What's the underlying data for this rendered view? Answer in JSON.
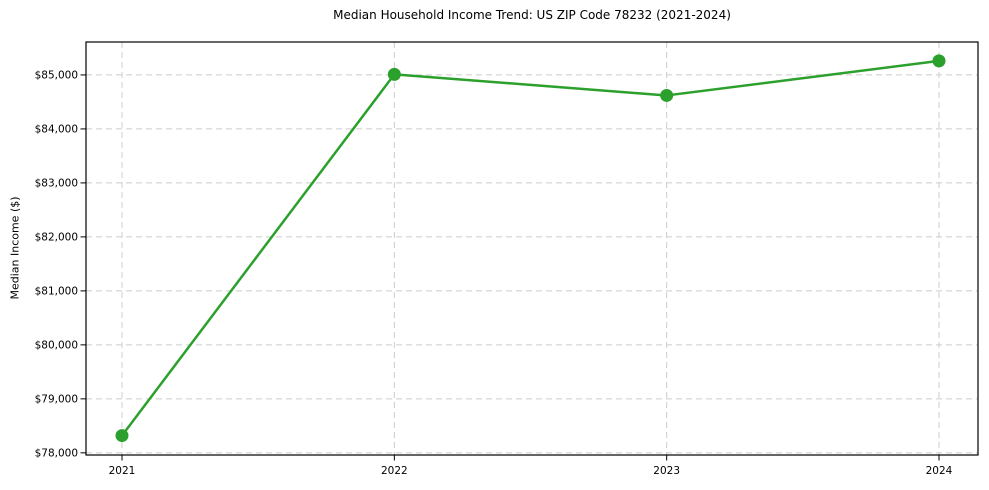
{
  "chart_data": {
    "type": "line",
    "title": "Median Household Income Trend: US ZIP Code 78232 (2021-2024)",
    "xlabel": "",
    "ylabel": "Median Income ($)",
    "x": [
      2021,
      2022,
      2023,
      2024
    ],
    "x_tick_labels": [
      "2021",
      "2022",
      "2023",
      "2024"
    ],
    "series": [
      {
        "name": "Median Household Income",
        "values": [
          78320,
          85010,
          84620,
          85260
        ]
      }
    ],
    "y_ticks": [
      78000,
      79000,
      80000,
      81000,
      82000,
      83000,
      84000,
      85000
    ],
    "y_tick_labels": [
      "$78,000",
      "$79,000",
      "$80,000",
      "$81,000",
      "$82,000",
      "$83,000",
      "$84,000",
      "$85,000"
    ],
    "ylim": [
      77960,
      85610
    ],
    "grid": "both, dashed",
    "legend": "none",
    "colors": {
      "line": "#2ca02c",
      "marker": "#2ca02c",
      "grid": "#cccccc",
      "axis": "#000000",
      "text": "#000000",
      "background": "#ffffff"
    }
  }
}
